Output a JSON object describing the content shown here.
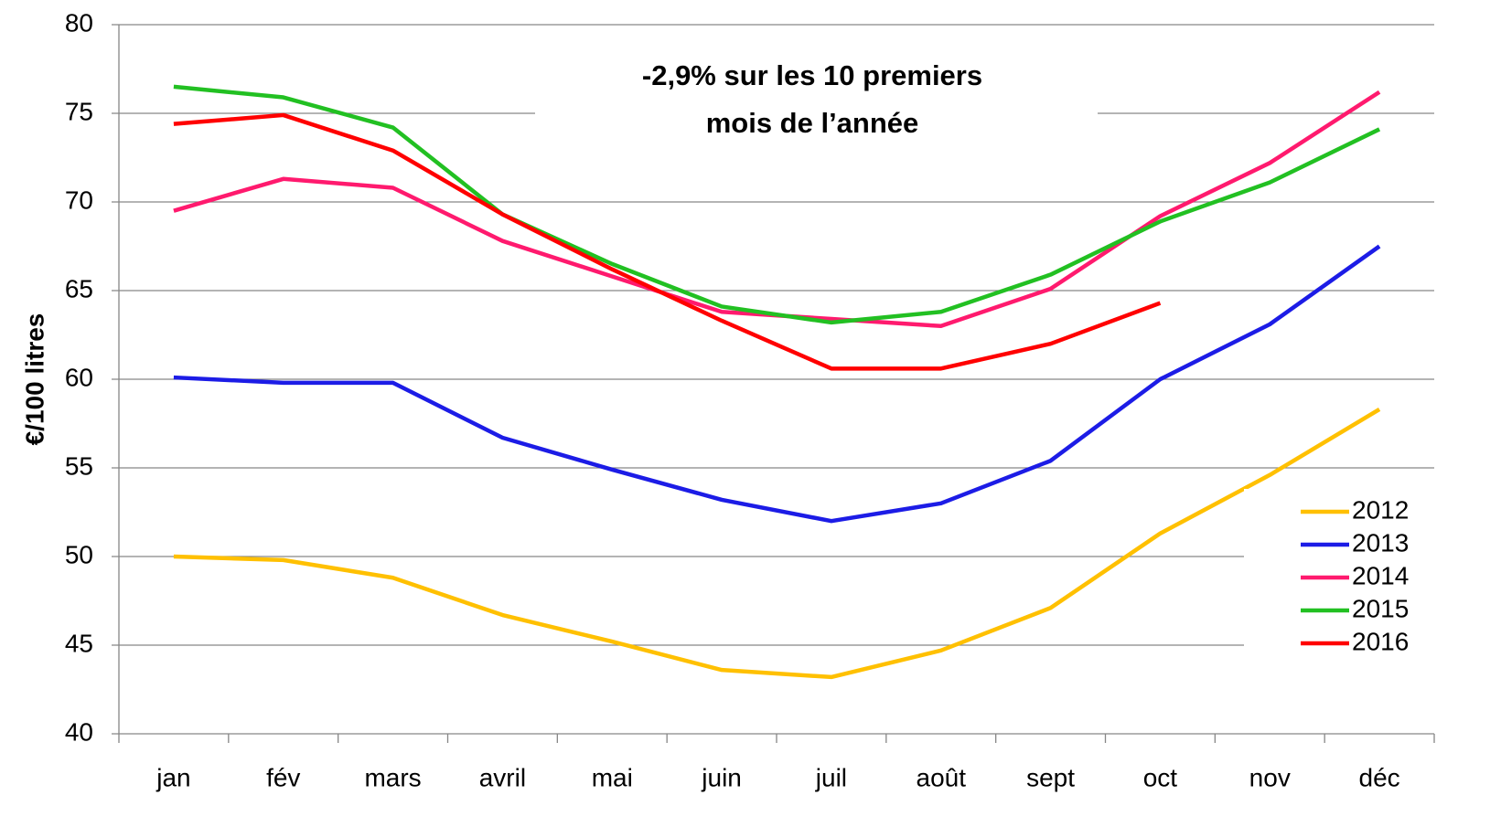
{
  "chart_data": {
    "type": "line",
    "y_label": "€/100 litres",
    "annotation": [
      "-2,9% sur les 10 premiers",
      "mois de l’année"
    ],
    "categories": [
      "jan",
      "fév",
      "mars",
      "avril",
      "mai",
      "juin",
      "juil",
      "août",
      "sept",
      "oct",
      "nov",
      "déc"
    ],
    "series": [
      {
        "name": "2012",
        "color": "#ffc000",
        "values": [
          50.0,
          49.8,
          48.8,
          46.7,
          45.2,
          43.6,
          43.2,
          44.7,
          47.1,
          51.3,
          54.6,
          58.3
        ]
      },
      {
        "name": "2013",
        "color": "#1c1ce6",
        "values": [
          60.1,
          59.8,
          59.8,
          56.7,
          54.9,
          53.2,
          52.0,
          53.0,
          55.4,
          60.0,
          63.1,
          67.5
        ]
      },
      {
        "name": "2014",
        "color": "#ff1a6e",
        "values": [
          69.5,
          71.3,
          70.8,
          67.8,
          65.8,
          63.8,
          63.4,
          63.0,
          65.1,
          69.2,
          72.2,
          76.2
        ]
      },
      {
        "name": "2015",
        "color": "#22c022",
        "values": [
          76.5,
          75.9,
          74.2,
          69.3,
          66.5,
          64.1,
          63.2,
          63.8,
          65.9,
          68.9,
          71.1,
          74.1
        ]
      },
      {
        "name": "2016",
        "color": "#ff0000",
        "values": [
          74.4,
          74.9,
          72.9,
          69.3,
          66.2,
          63.3,
          60.6,
          60.6,
          62.0,
          64.3,
          null,
          null
        ]
      }
    ],
    "ylim": [
      40,
      80
    ],
    "yticks": [
      40,
      45,
      50,
      55,
      60,
      65,
      70,
      75,
      80
    ],
    "grid": true,
    "legend": "right"
  }
}
